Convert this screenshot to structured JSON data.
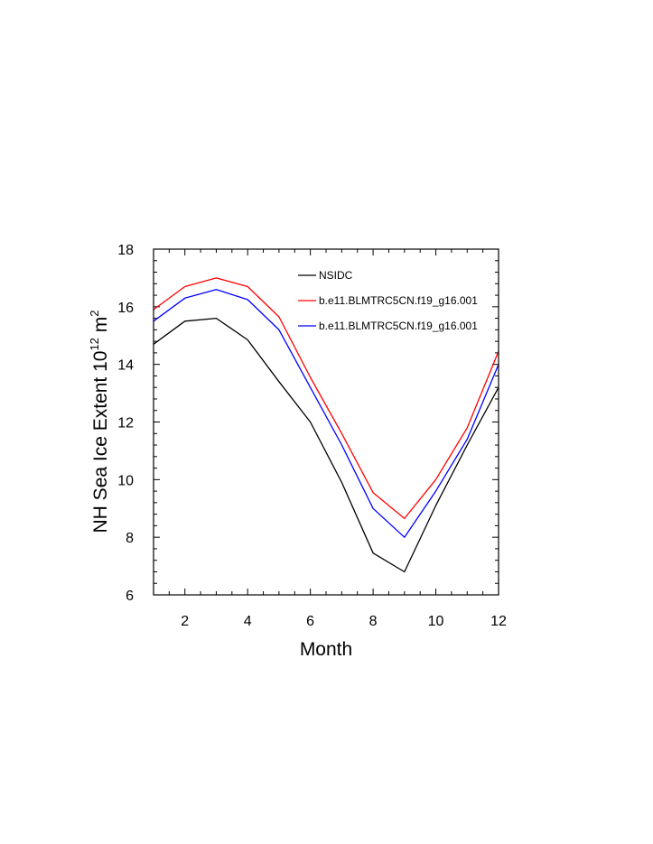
{
  "chart_data": {
    "type": "line",
    "title": "",
    "xlabel": "Month",
    "ylabel_main": "NH Sea Ice Extent 10",
    "ylabel_exp1": "12",
    "ylabel_unit": " m",
    "ylabel_exp2": "2",
    "xlim": [
      1,
      12
    ],
    "ylim": [
      6,
      18
    ],
    "xticks": [
      2,
      4,
      6,
      8,
      10,
      12
    ],
    "yticks": [
      6,
      8,
      10,
      12,
      14,
      16,
      18
    ],
    "x": [
      1,
      2,
      3,
      4,
      5,
      6,
      7,
      8,
      9,
      10,
      11,
      12
    ],
    "legend_position": "top-right",
    "series": [
      {
        "name": "NSIDC",
        "color": "#000000",
        "values": [
          14.7,
          15.5,
          15.6,
          14.85,
          13.4,
          12.0,
          9.9,
          7.45,
          6.8,
          9.1,
          11.2,
          13.2
        ]
      },
      {
        "name": "b.e11.BLMTRC5CN.f19_g16.001",
        "color": "#ff0000",
        "values": [
          15.9,
          16.7,
          17.0,
          16.7,
          15.65,
          13.55,
          11.6,
          9.55,
          8.65,
          10.0,
          11.8,
          14.45
        ]
      },
      {
        "name": "b.e11.BLMTRC5CN.f19_g16.001",
        "color": "#0000ff",
        "values": [
          15.5,
          16.3,
          16.6,
          16.25,
          15.2,
          13.2,
          11.2,
          9.0,
          8.0,
          9.6,
          11.4,
          14.0
        ]
      }
    ]
  }
}
